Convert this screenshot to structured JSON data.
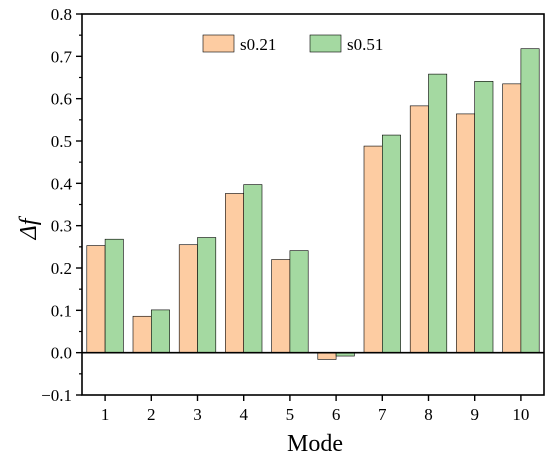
{
  "chart_data": {
    "type": "bar",
    "categories": [
      "1",
      "2",
      "3",
      "4",
      "5",
      "6",
      "7",
      "8",
      "9",
      "10"
    ],
    "series": [
      {
        "name": "s0.21",
        "color": "#FDCCA2",
        "values": [
          0.253,
          0.086,
          0.255,
          0.376,
          0.22,
          -0.016,
          0.488,
          0.583,
          0.564,
          0.635
        ]
      },
      {
        "name": "s0.51",
        "color": "#A4D9A1",
        "values": [
          0.268,
          0.101,
          0.272,
          0.397,
          0.241,
          -0.008,
          0.514,
          0.658,
          0.641,
          0.718
        ]
      }
    ],
    "xlabel": "Mode",
    "ylabel": "Δf",
    "ylim": [
      -0.1,
      0.8
    ],
    "yticks": [
      -0.1,
      0.0,
      0.1,
      0.2,
      0.3,
      0.4,
      0.5,
      0.6,
      0.7,
      0.8
    ],
    "ytick_labels": [
      "−0.1",
      "0.0",
      "0.1",
      "0.2",
      "0.3",
      "0.4",
      "0.5",
      "0.6",
      "0.7",
      "0.8"
    ],
    "zero_line": true,
    "legend_position": "top-center",
    "grid": false
  }
}
